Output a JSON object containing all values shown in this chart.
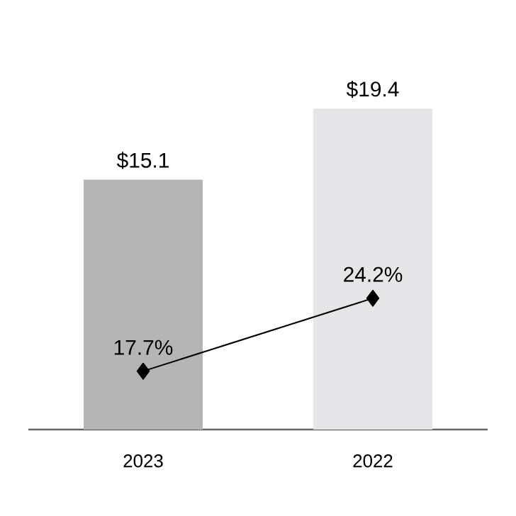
{
  "chart_data": {
    "type": "bar",
    "categories": [
      "2023",
      "2022"
    ],
    "series": [
      {
        "colors": [
          "#b5b5b5",
          "#e6e6e8"
        ],
        "values": [
          15.1,
          19.4
        ],
        "value_labels": [
          "$15.1",
          "$19.4"
        ]
      },
      {
        "type": "line",
        "axis": "y2",
        "color": "#000000",
        "marker": "diamond",
        "values": [
          17.7,
          24.2
        ],
        "value_labels": [
          "17.7%",
          "24.2%"
        ]
      }
    ],
    "tick_labels": "x"
  }
}
